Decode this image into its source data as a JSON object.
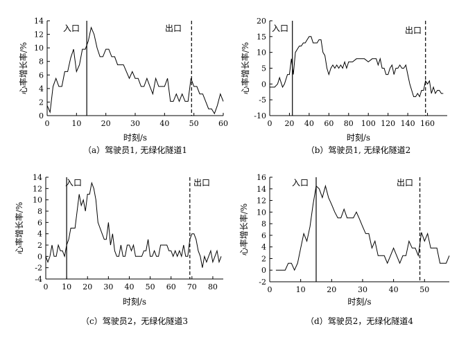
{
  "chart_data": [
    {
      "type": "line",
      "caption": "（a）驾驶员1, 无绿化隧道1",
      "xlabel": "时刻/s",
      "ylabel": "心率增长率/%",
      "xlim": [
        0,
        60
      ],
      "ylim": [
        0,
        14
      ],
      "xticks": [
        0,
        10,
        20,
        30,
        40,
        50,
        60
      ],
      "yticks": [
        0,
        2,
        4,
        6,
        8,
        10,
        12,
        14
      ],
      "entry": {
        "label": "入口",
        "x": 13.5,
        "style": "solid"
      },
      "exit": {
        "label": "出口",
        "x": 49.2,
        "style": "dashed"
      },
      "series": [
        {
          "x": [
            0,
            1,
            2,
            3,
            4,
            5,
            6,
            7,
            8,
            9,
            10,
            11,
            12,
            13,
            14,
            15,
            16,
            17,
            18,
            19,
            20,
            21,
            22,
            23,
            24,
            25,
            26,
            27,
            28,
            29,
            30,
            31,
            32,
            33,
            34,
            35,
            36,
            37,
            38,
            39,
            40,
            41,
            42,
            43,
            44,
            45,
            46,
            47,
            48,
            49,
            50,
            51,
            52,
            53,
            54,
            55,
            56,
            57,
            58,
            59,
            60
          ],
          "y": [
            1.5,
            0.5,
            4.3,
            5.5,
            4.3,
            4.3,
            6.5,
            6.5,
            8.5,
            9.8,
            6.5,
            7.5,
            9.8,
            9.8,
            11.0,
            13.0,
            12.0,
            10.0,
            8.7,
            8.7,
            9.8,
            9.8,
            8.7,
            8.7,
            7.5,
            7.5,
            7.5,
            6.5,
            5.5,
            6.5,
            5.5,
            5.5,
            4.3,
            4.3,
            5.5,
            4.3,
            3.2,
            5.5,
            4.3,
            4.3,
            4.3,
            5.5,
            2.1,
            2.1,
            3.2,
            2.1,
            3.2,
            2.1,
            2.1,
            5.5,
            4.3,
            4.3,
            3.2,
            3.2,
            2.1,
            1.0,
            1.0,
            0.3,
            1.5,
            3.2,
            2.1
          ]
        }
      ]
    },
    {
      "type": "line",
      "caption": "（b）驾驶员1, 无绿化隧道2",
      "xlabel": "时刻/s",
      "ylabel": "心率增长率/%",
      "xlim": [
        0,
        180
      ],
      "ylim": [
        -10,
        20
      ],
      "xticks": [
        0,
        20,
        40,
        60,
        80,
        100,
        120,
        140,
        160
      ],
      "yticks": [
        -10,
        -5,
        0,
        5,
        10,
        15,
        20
      ],
      "entry": {
        "label": "入口",
        "x": 23,
        "style": "solid"
      },
      "exit": {
        "label": "出口",
        "x": 158,
        "style": "dashed"
      },
      "series": [
        {
          "x": [
            0,
            5,
            8,
            10,
            13,
            15,
            18,
            20,
            22,
            24,
            26,
            28,
            30,
            32,
            34,
            36,
            38,
            40,
            42,
            44,
            46,
            48,
            50,
            52,
            54,
            56,
            58,
            60,
            62,
            64,
            66,
            68,
            70,
            72,
            74,
            76,
            78,
            80,
            84,
            88,
            92,
            96,
            100,
            104,
            108,
            110,
            112,
            114,
            116,
            118,
            120,
            122,
            124,
            126,
            128,
            130,
            132,
            134,
            136,
            138,
            140,
            142,
            144,
            146,
            148,
            150,
            152,
            154,
            156,
            158,
            160,
            162,
            164,
            166,
            168,
            170,
            172,
            174,
            176
          ],
          "y": [
            -1,
            -1,
            0,
            2,
            -1,
            0,
            3,
            3,
            8,
            3,
            10,
            11,
            12,
            12,
            13,
            13,
            14,
            15,
            15,
            13,
            13,
            13,
            14,
            14,
            10,
            9,
            5,
            3,
            5,
            6,
            5,
            6,
            5,
            6,
            5,
            7,
            5,
            7,
            7,
            8,
            8,
            8,
            7,
            8,
            8,
            6,
            8,
            5,
            5,
            3,
            3,
            5,
            6,
            3,
            5,
            5,
            6,
            5,
            5,
            6,
            3,
            0,
            -2,
            -4,
            -4,
            -3,
            -4,
            -2,
            -2,
            1,
            0,
            1,
            -3,
            -1,
            -3,
            -2,
            -2,
            -3,
            -3
          ]
        }
      ]
    },
    {
      "type": "line",
      "caption": "（c）驾驶员2，无绿化隧道3",
      "xlabel": "时刻/s",
      "ylabel": "心率增长率/%",
      "xlim": [
        0,
        85
      ],
      "ylim": [
        -4,
        14
      ],
      "xticks": [
        0,
        10,
        20,
        30,
        40,
        50,
        60,
        70,
        80
      ],
      "yticks": [
        -4,
        -2,
        0,
        2,
        4,
        6,
        8,
        10,
        12,
        14
      ],
      "entry": {
        "label": "入口",
        "x": 10,
        "style": "solid"
      },
      "exit": {
        "label": "出口",
        "x": 69,
        "style": "dashed"
      },
      "series": [
        {
          "x": [
            0,
            1,
            2,
            3,
            4,
            5,
            6,
            7,
            8,
            9,
            10,
            11,
            12,
            13,
            14,
            15,
            16,
            17,
            18,
            19,
            20,
            21,
            22,
            23,
            24,
            25,
            26,
            27,
            28,
            29,
            30,
            31,
            32,
            33,
            34,
            35,
            36,
            37,
            38,
            39,
            40,
            41,
            42,
            43,
            44,
            45,
            46,
            47,
            48,
            49,
            50,
            51,
            52,
            53,
            54,
            55,
            56,
            57,
            58,
            59,
            60,
            61,
            62,
            63,
            64,
            65,
            66,
            67,
            68,
            69,
            70,
            71,
            72,
            73,
            74,
            75,
            76,
            77,
            78,
            79,
            80,
            81,
            82,
            83,
            84
          ],
          "y": [
            0,
            -1,
            0,
            2,
            0,
            0,
            2,
            1,
            1,
            0,
            2,
            3,
            5,
            5,
            5,
            8,
            11,
            9,
            10,
            8,
            11,
            11,
            13,
            12,
            10,
            6,
            5,
            4,
            3,
            3,
            6,
            2,
            4,
            1,
            0,
            0,
            2,
            0,
            0,
            2,
            2,
            1,
            2,
            0,
            0,
            0,
            0,
            1,
            1,
            3,
            0,
            0,
            1,
            0,
            0,
            2,
            2,
            2,
            2,
            1,
            1,
            0,
            1,
            0,
            1,
            0,
            2,
            0,
            0,
            3,
            4,
            4,
            3,
            1,
            0,
            -2,
            0,
            -1,
            0,
            1,
            -1,
            0,
            1,
            -1,
            0
          ]
        }
      ]
    },
    {
      "type": "line",
      "caption": "（d）驾驶员2，无绿化隧道4",
      "xlabel": "时刻/s",
      "ylabel": "心率增长率/%",
      "xlim": [
        0,
        58
      ],
      "ylim": [
        -2,
        16
      ],
      "xticks": [
        0,
        10,
        20,
        30,
        40,
        50
      ],
      "yticks": [
        -2,
        0,
        2,
        4,
        6,
        8,
        10,
        12,
        14,
        16
      ],
      "entry": {
        "label": "入口",
        "x": 15,
        "style": "solid"
      },
      "exit": {
        "label": "出口",
        "x": 48.5,
        "style": "dashed"
      },
      "series": [
        {
          "x": [
            2,
            3,
            4,
            5,
            6,
            7,
            8,
            9,
            10,
            11,
            12,
            13,
            14,
            15,
            16,
            17,
            18,
            19,
            20,
            21,
            22,
            23,
            24,
            25,
            26,
            27,
            28,
            29,
            30,
            31,
            32,
            33,
            34,
            35,
            36,
            37,
            38,
            39,
            40,
            41,
            42,
            43,
            44,
            45,
            46,
            47,
            48,
            49,
            50,
            51,
            52,
            53,
            54,
            55,
            56,
            57,
            58
          ],
          "y": [
            0,
            0,
            0,
            0,
            1.2,
            1.2,
            0,
            1.2,
            3.8,
            6.3,
            5.0,
            7.5,
            11.3,
            14.5,
            14.0,
            12.5,
            14.5,
            12.5,
            11.3,
            10.0,
            9.0,
            9.0,
            10.5,
            9.0,
            9.0,
            9.0,
            10.0,
            8.8,
            7.5,
            6.3,
            6.3,
            3.8,
            5.0,
            2.5,
            2.5,
            2.5,
            1.2,
            2.5,
            3.8,
            2.5,
            1.2,
            2.5,
            2.5,
            5.0,
            3.8,
            3.8,
            2.5,
            6.5,
            5.0,
            6.3,
            3.8,
            3.8,
            3.8,
            1.2,
            1.2,
            1.2,
            2.5
          ]
        }
      ]
    }
  ]
}
